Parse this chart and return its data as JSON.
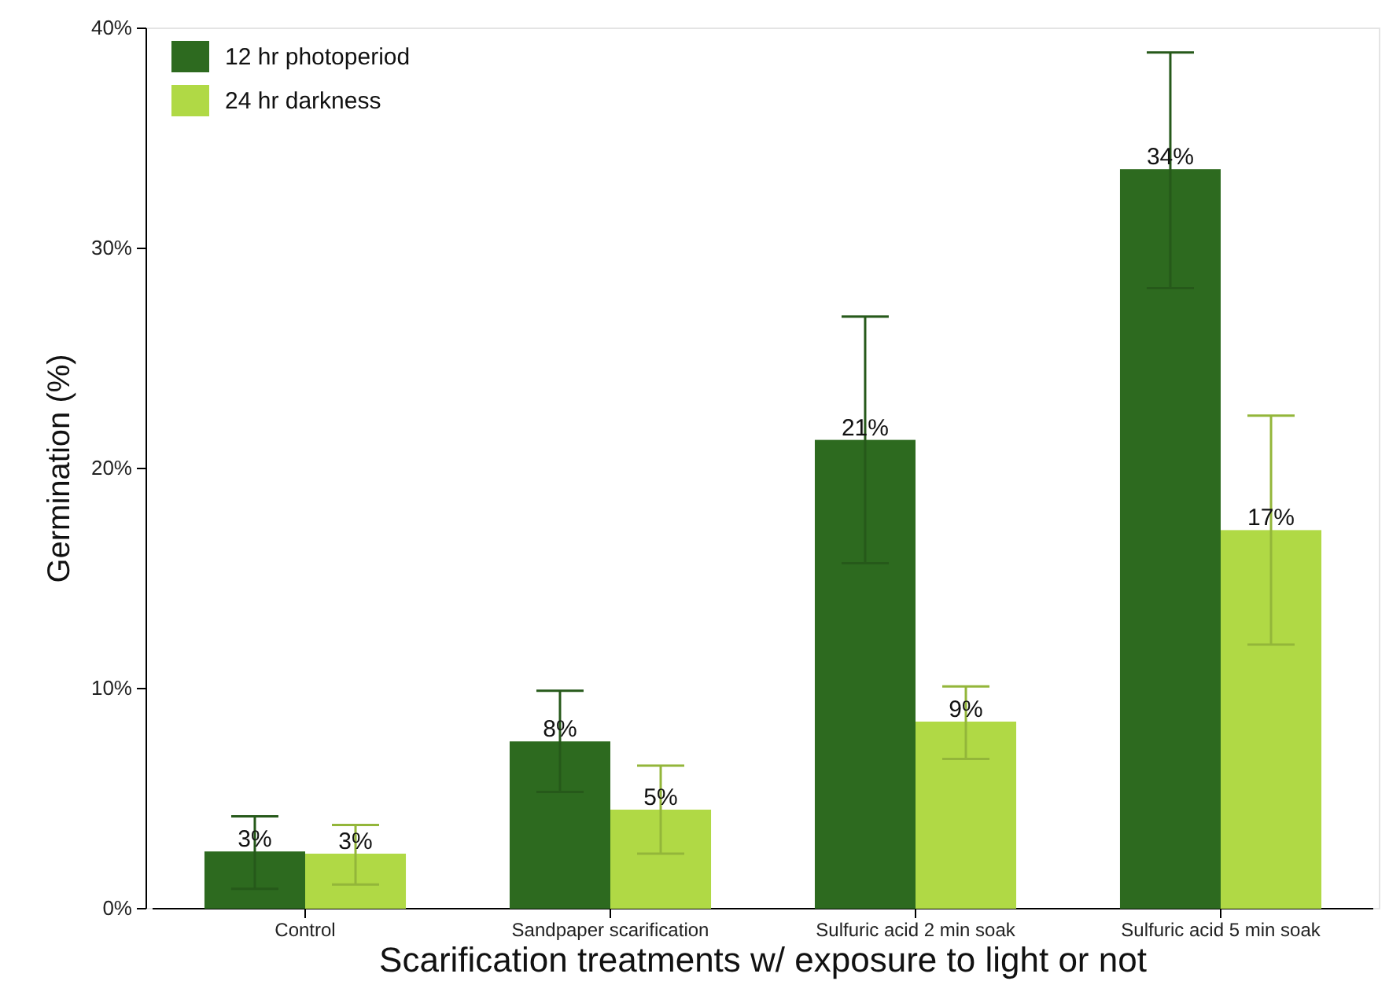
{
  "chart_data": {
    "type": "bar",
    "xlabel": "Scarification treatments w/ exposure to light or not",
    "ylabel": "Germination (%)",
    "categories": [
      "Control",
      "Sandpaper scarification",
      "Sulfuric acid 2 min soak",
      "Sulfuric acid 5 min soak"
    ],
    "series": [
      {
        "name": "12 hr photoperiod",
        "color": "#2d6a1f",
        "values": [
          2.6,
          7.6,
          21.3,
          33.6
        ],
        "errors": [
          [
            0.9,
            4.2
          ],
          [
            5.3,
            9.9
          ],
          [
            15.7,
            26.9
          ],
          [
            28.2,
            38.9
          ]
        ],
        "value_labels": [
          "3%",
          "8%",
          "21%",
          "34%"
        ]
      },
      {
        "name": "24 hr darkness",
        "color": "#b0d945",
        "values": [
          2.5,
          4.5,
          8.5,
          17.2
        ],
        "errors": [
          [
            1.1,
            3.8
          ],
          [
            2.5,
            6.5
          ],
          [
            6.8,
            10.1
          ],
          [
            12.0,
            22.4
          ]
        ],
        "value_labels": [
          "3%",
          "5%",
          "9%",
          "17%"
        ]
      }
    ],
    "ylim": [
      0,
      40
    ],
    "yticks": [
      {
        "value": 0,
        "label": "0%"
      },
      {
        "value": 10,
        "label": "10%"
      },
      {
        "value": 20,
        "label": "20%"
      },
      {
        "value": 30,
        "label": "30%"
      },
      {
        "value": 40,
        "label": "40%"
      }
    ],
    "grid": false,
    "legend": "top left"
  }
}
